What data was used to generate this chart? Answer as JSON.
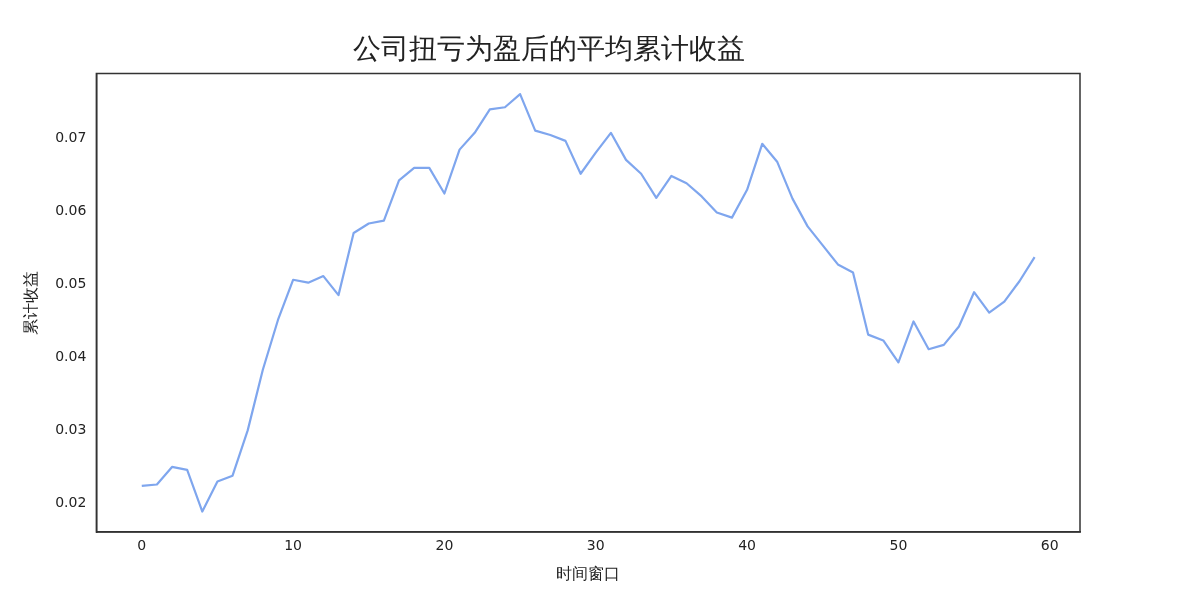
{
  "chart_data": {
    "type": "line",
    "title": "公司扭亏为盈后的平均累计收益",
    "xlabel": "时间窗口",
    "ylabel": "累计收益",
    "x": [
      0,
      1,
      2,
      3,
      4,
      5,
      6,
      7,
      8,
      9,
      10,
      11,
      12,
      13,
      14,
      15,
      16,
      17,
      18,
      19,
      20,
      21,
      22,
      23,
      24,
      25,
      26,
      27,
      28,
      29,
      30,
      31,
      32,
      33,
      34,
      35,
      36,
      37,
      38,
      39,
      40,
      41,
      42,
      43,
      44,
      45,
      46,
      47,
      48,
      49,
      50,
      51,
      52,
      53,
      54,
      55,
      56,
      57,
      58,
      59
    ],
    "series": [
      {
        "color": "#7fa6ee",
        "values": [
          0.0224,
          0.0226,
          0.025,
          0.0246,
          0.0189,
          0.023,
          0.0238,
          0.03,
          0.0383,
          0.0451,
          0.0506,
          0.0502,
          0.0511,
          0.0485,
          0.057,
          0.0583,
          0.0587,
          0.0642,
          0.0659,
          0.0659,
          0.0624,
          0.0684,
          0.0707,
          0.0739,
          0.0742,
          0.076,
          0.071,
          0.0704,
          0.0696,
          0.0651,
          0.068,
          0.0707,
          0.067,
          0.0651,
          0.0618,
          0.0648,
          0.0638,
          0.062,
          0.0598,
          0.0591,
          0.0629,
          0.0692,
          0.0667,
          0.0617,
          0.0579,
          0.0553,
          0.0527,
          0.0516,
          0.0431,
          0.0423,
          0.0393,
          0.0449,
          0.0411,
          0.0417,
          0.0442,
          0.0489,
          0.0461,
          0.0476,
          0.0504,
          0.0537
        ]
      }
    ],
    "xlim": [
      -3,
      62
    ],
    "xticks": [
      0,
      10,
      20,
      30,
      40,
      50,
      60
    ],
    "ylim": [
      0.0161,
      0.0788
    ],
    "yticks": [
      0.02,
      0.03,
      0.04,
      0.05,
      0.06,
      0.07
    ],
    "grid": false,
    "legend": false,
    "marker": "none",
    "line_style": "solid"
  }
}
